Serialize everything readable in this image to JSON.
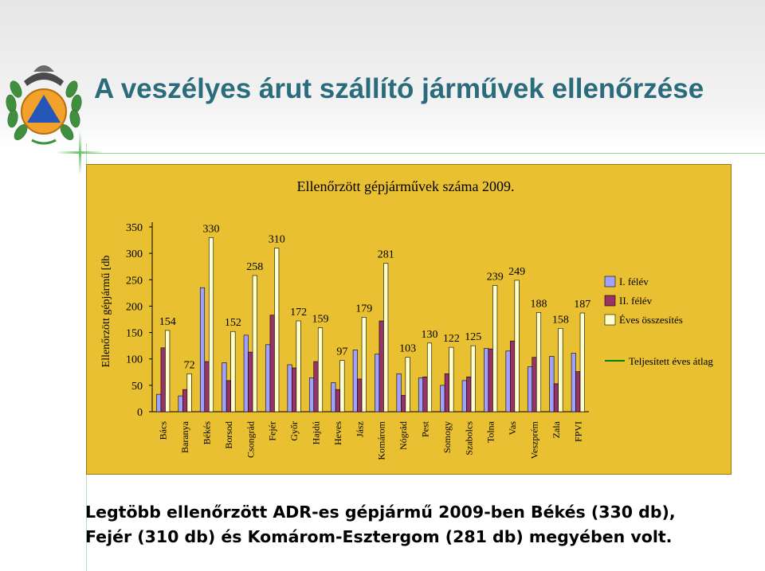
{
  "title": "A veszélyes árut szállító járművek ellenőrzése",
  "chart_data": {
    "type": "bar",
    "title": "Ellenőrzött gépjárművek száma 2009.",
    "ylabel": "Ellenőrzött gépjármű [db",
    "xlabel": "",
    "ylim": [
      0,
      350
    ],
    "yticks": [
      0,
      50,
      100,
      150,
      200,
      250,
      300,
      350
    ],
    "grid": false,
    "legend_position": "right",
    "categories": [
      "Bács",
      "Baranya",
      "Békés",
      "Borsod",
      "Csongrád",
      "Fejér",
      "Győr",
      "Hajdú",
      "Heves",
      "Jász",
      "Komárom",
      "Nógrád",
      "Pest",
      "Somogy",
      "Szabolcs",
      "Tolna",
      "Vas",
      "Veszprém",
      "Zala",
      "FPVI"
    ],
    "series": [
      {
        "name": "I. félév",
        "color": "#a0a0ff",
        "values": [
          33,
          30,
          235,
          93,
          145,
          127,
          89,
          64,
          55,
          117,
          109,
          72,
          64,
          50,
          59,
          120,
          115,
          85,
          105,
          111
        ]
      },
      {
        "name": "II. félév",
        "color": "#993366",
        "values": [
          121,
          42,
          95,
          59,
          113,
          183,
          83,
          95,
          42,
          62,
          172,
          31,
          66,
          72,
          66,
          119,
          134,
          103,
          53,
          76
        ]
      },
      {
        "name": "Éves összesítés",
        "color": "#ffffcc",
        "values": [
          154,
          72,
          330,
          152,
          258,
          310,
          172,
          159,
          97,
          179,
          281,
          103,
          130,
          122,
          125,
          239,
          249,
          188,
          158,
          187
        ]
      }
    ],
    "reference_line": {
      "name": "Teljesített éves átlag",
      "color": "#008000"
    },
    "data_labels": [
      154,
      72,
      330,
      152,
      258,
      310,
      172,
      159,
      97,
      179,
      281,
      103,
      130,
      122,
      125,
      239,
      249,
      188,
      158,
      187
    ]
  },
  "caption": {
    "line1": "Legtöbb ellenőrzött ADR-es gépjármű 2009-ben Békés (330 db),",
    "line2": "Fejér (310 db) és Komárom-Esztergom (281 db) megyében volt."
  }
}
